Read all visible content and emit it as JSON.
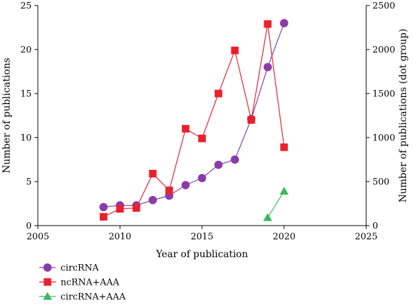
{
  "chart_data": {
    "type": "line",
    "xlabel": "Year of publication",
    "ylabel_left": "Number of publications",
    "ylabel_right": "Number of publications (dot group)",
    "xlim": [
      2005,
      2025
    ],
    "ylim_left": [
      0,
      25
    ],
    "ylim_right": [
      0,
      2500
    ],
    "x_ticks": [
      2005,
      2010,
      2015,
      2020,
      2025
    ],
    "y_left_ticks": [
      0,
      5,
      10,
      15,
      20,
      25
    ],
    "y_right_ticks": [
      0,
      500,
      1000,
      1500,
      2000,
      2500
    ],
    "grid": false,
    "legend_position": "bottom-left",
    "series": [
      {
        "name": "circRNA",
        "axis": "left",
        "marker": "circle",
        "color": "#8B3BA8",
        "x": [
          2009,
          2010,
          2011,
          2012,
          2013,
          2014,
          2015,
          2016,
          2017,
          2018,
          2019,
          2020
        ],
        "y": [
          2.1,
          2.3,
          2.3,
          2.9,
          3.4,
          4.6,
          5.4,
          6.9,
          7.5,
          12.1,
          18.0,
          23.0
        ]
      },
      {
        "name": "ncRNA+AAA",
        "axis": "left",
        "marker": "square",
        "color": "#E8222D",
        "x": [
          2009,
          2010,
          2011,
          2012,
          2013,
          2014,
          2015,
          2016,
          2017,
          2018,
          2019,
          2020
        ],
        "y": [
          1.0,
          1.9,
          2.0,
          5.9,
          4.0,
          11.0,
          9.9,
          15.0,
          19.9,
          12.0,
          22.9,
          8.9
        ]
      },
      {
        "name": "circRNA+AAA",
        "axis": "right",
        "marker": "triangle",
        "color": "#3DB85C",
        "x": [
          2019,
          2020
        ],
        "y": [
          90,
          390
        ]
      }
    ]
  }
}
